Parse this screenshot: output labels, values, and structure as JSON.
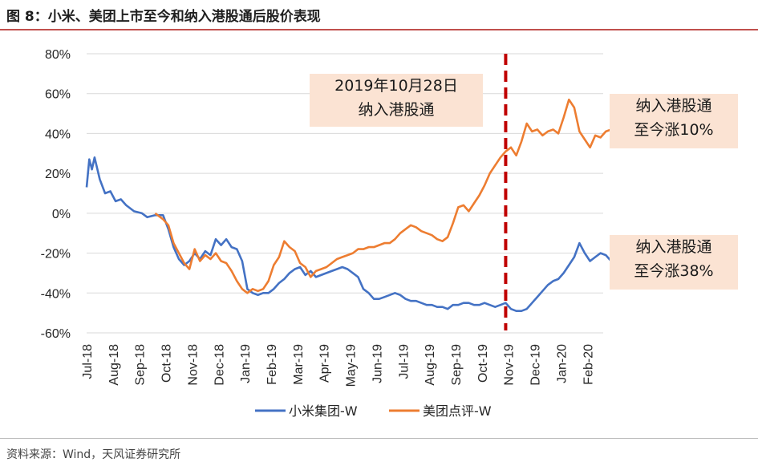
{
  "title": "图 8：小米、美团上市至今和纳入港股通后股价表现",
  "source": "资料来源：Wind，天风证券研究所",
  "annotations": {
    "event_line1": "2019年10月28日",
    "event_line2": "纳入港股通",
    "meituan_line1": "纳入港股通",
    "meituan_line2": "至今涨10%",
    "xiaomi_line1": "纳入港股通",
    "xiaomi_line2": "至今涨38%"
  },
  "colors": {
    "xiaomi": "#4472c4",
    "meituan": "#ed7d31",
    "event_line": "#c00000",
    "annotation_bg": "#fbe3d3"
  },
  "chart_data": {
    "type": "line",
    "title": "",
    "xlabel": "",
    "ylabel": "",
    "ylim": [
      -0.6,
      0.8
    ],
    "y_ticks": [
      "80%",
      "60%",
      "40%",
      "20%",
      "0%",
      "-20%",
      "-40%",
      "-60%"
    ],
    "x_tick_labels": [
      "Jul-18",
      "Aug-18",
      "Sep-18",
      "Oct-18",
      "Nov-18",
      "Dec-18",
      "Jan-19",
      "Feb-19",
      "Mar-19",
      "Apr-19",
      "May-19",
      "Jun-19",
      "Jul-19",
      "Aug-19",
      "Sep-19",
      "Oct-19",
      "Nov-19",
      "Dec-19",
      "Jan-20",
      "Feb-20"
    ],
    "event_line_month_index": 15.9,
    "grid": true,
    "legend_position": "bottom",
    "series": [
      {
        "name": "小米集团-W",
        "points": [
          [
            0.0,
            0.13
          ],
          [
            0.1,
            0.27
          ],
          [
            0.2,
            0.22
          ],
          [
            0.3,
            0.28
          ],
          [
            0.5,
            0.17
          ],
          [
            0.7,
            0.1
          ],
          [
            0.9,
            0.11
          ],
          [
            1.1,
            0.06
          ],
          [
            1.3,
            0.07
          ],
          [
            1.5,
            0.04
          ],
          [
            1.8,
            0.01
          ],
          [
            2.1,
            0.0
          ],
          [
            2.3,
            -0.02
          ],
          [
            2.6,
            -0.01
          ],
          [
            2.9,
            -0.01
          ],
          [
            3.1,
            -0.08
          ],
          [
            3.3,
            -0.17
          ],
          [
            3.5,
            -0.23
          ],
          [
            3.7,
            -0.26
          ],
          [
            3.9,
            -0.24
          ],
          [
            4.1,
            -0.2
          ],
          [
            4.3,
            -0.23
          ],
          [
            4.5,
            -0.19
          ],
          [
            4.7,
            -0.21
          ],
          [
            4.9,
            -0.13
          ],
          [
            5.1,
            -0.16
          ],
          [
            5.3,
            -0.13
          ],
          [
            5.5,
            -0.17
          ],
          [
            5.7,
            -0.18
          ],
          [
            5.9,
            -0.24
          ],
          [
            6.1,
            -0.38
          ],
          [
            6.3,
            -0.4
          ],
          [
            6.5,
            -0.41
          ],
          [
            6.7,
            -0.4
          ],
          [
            6.9,
            -0.4
          ],
          [
            7.1,
            -0.38
          ],
          [
            7.3,
            -0.35
          ],
          [
            7.5,
            -0.33
          ],
          [
            7.7,
            -0.3
          ],
          [
            7.9,
            -0.28
          ],
          [
            8.1,
            -0.27
          ],
          [
            8.3,
            -0.31
          ],
          [
            8.5,
            -0.29
          ],
          [
            8.7,
            -0.32
          ],
          [
            8.9,
            -0.31
          ],
          [
            9.1,
            -0.3
          ],
          [
            9.3,
            -0.29
          ],
          [
            9.5,
            -0.28
          ],
          [
            9.7,
            -0.27
          ],
          [
            9.9,
            -0.28
          ],
          [
            10.1,
            -0.3
          ],
          [
            10.3,
            -0.32
          ],
          [
            10.5,
            -0.38
          ],
          [
            10.7,
            -0.4
          ],
          [
            10.9,
            -0.43
          ],
          [
            11.1,
            -0.43
          ],
          [
            11.3,
            -0.42
          ],
          [
            11.5,
            -0.41
          ],
          [
            11.7,
            -0.4
          ],
          [
            11.9,
            -0.41
          ],
          [
            12.1,
            -0.43
          ],
          [
            12.3,
            -0.44
          ],
          [
            12.5,
            -0.44
          ],
          [
            12.7,
            -0.45
          ],
          [
            12.9,
            -0.46
          ],
          [
            13.1,
            -0.46
          ],
          [
            13.3,
            -0.47
          ],
          [
            13.5,
            -0.47
          ],
          [
            13.7,
            -0.48
          ],
          [
            13.9,
            -0.46
          ],
          [
            14.1,
            -0.46
          ],
          [
            14.3,
            -0.45
          ],
          [
            14.5,
            -0.45
          ],
          [
            14.7,
            -0.46
          ],
          [
            14.9,
            -0.46
          ],
          [
            15.1,
            -0.45
          ],
          [
            15.3,
            -0.46
          ],
          [
            15.5,
            -0.47
          ],
          [
            15.7,
            -0.46
          ],
          [
            15.9,
            -0.45
          ],
          [
            16.1,
            -0.48
          ],
          [
            16.3,
            -0.49
          ],
          [
            16.5,
            -0.49
          ],
          [
            16.7,
            -0.48
          ],
          [
            16.9,
            -0.45
          ],
          [
            17.1,
            -0.42
          ],
          [
            17.3,
            -0.39
          ],
          [
            17.5,
            -0.36
          ],
          [
            17.7,
            -0.34
          ],
          [
            17.9,
            -0.33
          ],
          [
            18.1,
            -0.3
          ],
          [
            18.3,
            -0.26
          ],
          [
            18.5,
            -0.22
          ],
          [
            18.7,
            -0.15
          ],
          [
            18.9,
            -0.2
          ],
          [
            19.1,
            -0.24
          ],
          [
            19.3,
            -0.22
          ],
          [
            19.5,
            -0.2
          ],
          [
            19.7,
            -0.21
          ],
          [
            19.9,
            -0.24
          ]
        ]
      },
      {
        "name": "美团点评-W",
        "points": [
          [
            2.6,
            0.0
          ],
          [
            2.9,
            -0.03
          ],
          [
            3.1,
            -0.06
          ],
          [
            3.3,
            -0.15
          ],
          [
            3.5,
            -0.2
          ],
          [
            3.7,
            -0.25
          ],
          [
            3.9,
            -0.28
          ],
          [
            4.1,
            -0.18
          ],
          [
            4.3,
            -0.24
          ],
          [
            4.5,
            -0.21
          ],
          [
            4.7,
            -0.23
          ],
          [
            4.9,
            -0.2
          ],
          [
            5.1,
            -0.24
          ],
          [
            5.3,
            -0.25
          ],
          [
            5.5,
            -0.29
          ],
          [
            5.7,
            -0.34
          ],
          [
            5.9,
            -0.38
          ],
          [
            6.1,
            -0.4
          ],
          [
            6.3,
            -0.38
          ],
          [
            6.5,
            -0.39
          ],
          [
            6.7,
            -0.38
          ],
          [
            6.9,
            -0.34
          ],
          [
            7.1,
            -0.26
          ],
          [
            7.3,
            -0.22
          ],
          [
            7.5,
            -0.14
          ],
          [
            7.7,
            -0.17
          ],
          [
            7.9,
            -0.19
          ],
          [
            8.1,
            -0.25
          ],
          [
            8.3,
            -0.27
          ],
          [
            8.5,
            -0.32
          ],
          [
            8.7,
            -0.29
          ],
          [
            8.9,
            -0.28
          ],
          [
            9.1,
            -0.27
          ],
          [
            9.3,
            -0.25
          ],
          [
            9.5,
            -0.23
          ],
          [
            9.7,
            -0.22
          ],
          [
            9.9,
            -0.21
          ],
          [
            10.1,
            -0.2
          ],
          [
            10.3,
            -0.18
          ],
          [
            10.5,
            -0.18
          ],
          [
            10.7,
            -0.17
          ],
          [
            10.9,
            -0.17
          ],
          [
            11.1,
            -0.16
          ],
          [
            11.3,
            -0.15
          ],
          [
            11.5,
            -0.15
          ],
          [
            11.7,
            -0.13
          ],
          [
            11.9,
            -0.1
          ],
          [
            12.1,
            -0.08
          ],
          [
            12.3,
            -0.06
          ],
          [
            12.5,
            -0.07
          ],
          [
            12.7,
            -0.09
          ],
          [
            12.9,
            -0.1
          ],
          [
            13.1,
            -0.11
          ],
          [
            13.3,
            -0.13
          ],
          [
            13.5,
            -0.14
          ],
          [
            13.7,
            -0.12
          ],
          [
            13.9,
            -0.05
          ],
          [
            14.1,
            0.03
          ],
          [
            14.3,
            0.04
          ],
          [
            14.5,
            0.01
          ],
          [
            14.7,
            0.05
          ],
          [
            14.9,
            0.09
          ],
          [
            15.1,
            0.14
          ],
          [
            15.3,
            0.2
          ],
          [
            15.5,
            0.24
          ],
          [
            15.7,
            0.28
          ],
          [
            15.9,
            0.31
          ],
          [
            16.1,
            0.33
          ],
          [
            16.3,
            0.29
          ],
          [
            16.5,
            0.36
          ],
          [
            16.7,
            0.45
          ],
          [
            16.9,
            0.41
          ],
          [
            17.1,
            0.42
          ],
          [
            17.3,
            0.39
          ],
          [
            17.5,
            0.41
          ],
          [
            17.7,
            0.42
          ],
          [
            17.9,
            0.4
          ],
          [
            18.1,
            0.48
          ],
          [
            18.3,
            0.57
          ],
          [
            18.5,
            0.53
          ],
          [
            18.7,
            0.41
          ],
          [
            18.9,
            0.37
          ],
          [
            19.1,
            0.33
          ],
          [
            19.3,
            0.39
          ],
          [
            19.5,
            0.38
          ],
          [
            19.7,
            0.41
          ],
          [
            19.9,
            0.42
          ]
        ]
      }
    ]
  }
}
